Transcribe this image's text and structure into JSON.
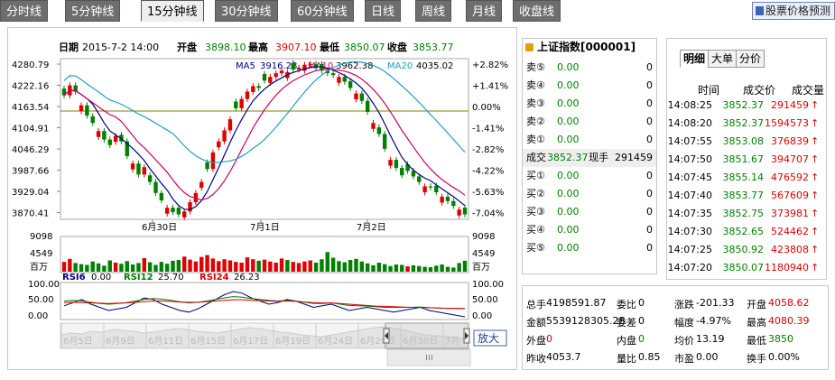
{
  "tabs": [
    "分时线",
    "5分钟线",
    "15分钟线",
    "30分钟线",
    "60分钟线",
    "日线",
    "周线",
    "月线",
    "收盘线"
  ],
  "active_tab": "15分钟线",
  "predict_button": "股票价格预测",
  "header": {
    "date_label": "日期",
    "date": "2015-7-2 14:00",
    "open_label": "开盘",
    "open": "3898.10",
    "high_label": "最高",
    "high": "3907.10",
    "low_label": "最低",
    "low": "3850.07",
    "close_label": "收盘",
    "close": "3853.77"
  },
  "ma": {
    "ma5_label": "MA5",
    "ma5": "3916.28",
    "ma10_label": "MA10",
    "ma10": "3962.38",
    "ma20_label": "MA20",
    "ma20": "4035.02"
  },
  "price_ticks": [
    "4280.79",
    "4222.16",
    "4163.54",
    "4104.91",
    "4046.29",
    "3987.66",
    "3929.04",
    "3870.41"
  ],
  "pct_ticks": [
    "+2.82%",
    "+1.41%",
    "0.00%",
    "-1.41%",
    "-2.82%",
    "-4.22%",
    "-5.63%",
    "-7.04%"
  ],
  "date_ticks": [
    "6月30日",
    "7月1日",
    "7月2日"
  ],
  "vol_ticks": [
    "9098",
    "4549",
    "百万"
  ],
  "rsi": {
    "rsi6_label": "RSI6",
    "rsi6": "0.00",
    "rsi12_label": "RSI12",
    "rsi12": "25.70",
    "rsi24_label": "RSI24",
    "rsi24": "26.23"
  },
  "rsi_ticks": [
    "100.00",
    "50.00",
    "0.00"
  ],
  "nav_dates": [
    "6月5日",
    "6月9日",
    "6月11日",
    "6月15日",
    "6月17日",
    "6月19日",
    "6月24日",
    "6月26日",
    "6月30日",
    "7月"
  ],
  "zoom_button": "放大",
  "index": {
    "title": "上证指数[000001]",
    "sell": [
      {
        "label": "卖⑤",
        "price": "0.00",
        "vol": "0"
      },
      {
        "label": "卖④",
        "price": "0.00",
        "vol": "0"
      },
      {
        "label": "卖③",
        "price": "0.00",
        "vol": "0"
      },
      {
        "label": "卖②",
        "price": "0.00",
        "vol": "0"
      },
      {
        "label": "卖①",
        "price": "0.00",
        "vol": "0"
      }
    ],
    "deal": {
      "label": "成交",
      "price": "3852.37",
      "now_label": "现手",
      "vol": "291459"
    },
    "buy": [
      {
        "label": "买①",
        "price": "0.00",
        "vol": "0"
      },
      {
        "label": "买②",
        "price": "0.00",
        "vol": "0"
      },
      {
        "label": "买③",
        "price": "0.00",
        "vol": "0"
      },
      {
        "label": "买④",
        "price": "0.00",
        "vol": "0"
      },
      {
        "label": "买⑤",
        "price": "0.00",
        "vol": "0"
      }
    ]
  },
  "trades": {
    "tabs": [
      "明细",
      "大单",
      "分价"
    ],
    "headers": [
      "时间",
      "成交价",
      "成交量"
    ],
    "rows": [
      {
        "t": "14:08:25",
        "p": "3852.37",
        "v": "291459"
      },
      {
        "t": "14:08:20",
        "p": "3852.37",
        "v": "1594573"
      },
      {
        "t": "14:07:55",
        "p": "3853.08",
        "v": "376839"
      },
      {
        "t": "14:07:50",
        "p": "3851.67",
        "v": "394707"
      },
      {
        "t": "14:07:45",
        "p": "3855.14",
        "v": "476592"
      },
      {
        "t": "14:07:40",
        "p": "3853.77",
        "v": "567609"
      },
      {
        "t": "14:07:35",
        "p": "3852.75",
        "v": "373981"
      },
      {
        "t": "14:07:30",
        "p": "3852.65",
        "v": "524462"
      },
      {
        "t": "14:07:25",
        "p": "3850.92",
        "v": "423808"
      },
      {
        "t": "14:07:20",
        "p": "3850.07",
        "v": "1180940"
      }
    ]
  },
  "stats": {
    "r1": [
      "总手",
      "4198591.87",
      "委比",
      "0",
      "涨跌",
      "-201.33",
      "开盘",
      "4058.62"
    ],
    "r2": [
      "金额",
      "5539128305.28",
      "委差",
      "0",
      "幅度",
      "-4.97%",
      "最高",
      "4080.39"
    ],
    "r3": [
      "外盘",
      "0",
      "内盘",
      "0",
      "均价",
      "13.19",
      "最低",
      "3850"
    ],
    "r4": [
      "昨收",
      "4053.7",
      "量比",
      "0.85",
      "市盈",
      "0.00",
      "换手",
      "0.00%"
    ]
  },
  "colors": {
    "up": "#e00000",
    "down": "#008000",
    "ma5": "#000080",
    "ma10": "#cc0066",
    "ma20": "#20a0c0"
  }
}
